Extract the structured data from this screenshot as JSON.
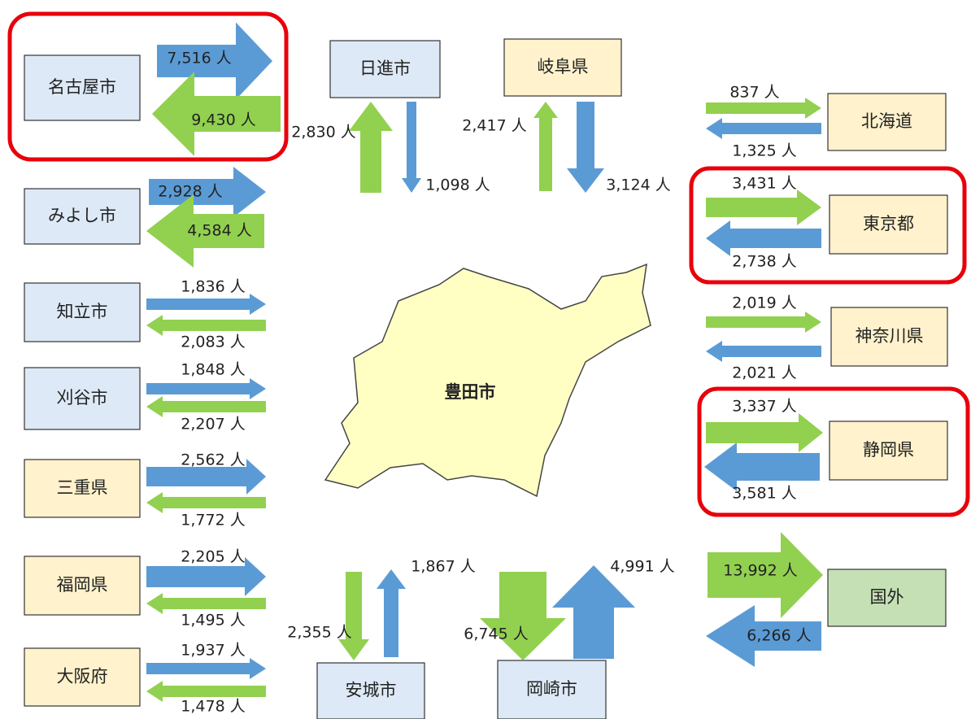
{
  "center": "豊田市",
  "nodes": [
    {
      "name": "名古屋市",
      "inflow": "7,516 人",
      "outflow": "9,430 人"
    },
    {
      "name": "みよし市",
      "inflow": "2,928 人",
      "outflow": "4,584 人"
    },
    {
      "name": "知立市",
      "inflow": "1,836 人",
      "outflow": "2,083 人"
    },
    {
      "name": "刈谷市",
      "inflow": "1,848 人",
      "outflow": "2,207 人"
    },
    {
      "name": "三重県",
      "inflow": "2,562 人",
      "outflow": "1,772 人"
    },
    {
      "name": "福岡県",
      "inflow": "2,205 人",
      "outflow": "1,495 人"
    },
    {
      "name": "大阪府",
      "inflow": "1,937 人",
      "outflow": "1,478 人"
    },
    {
      "name": "日進市",
      "inflow": "1,098 人",
      "outflow": "2,830 人"
    },
    {
      "name": "岐阜県",
      "inflow": "3,124 人",
      "outflow": "2,417 人"
    },
    {
      "name": "安城市",
      "inflow": "1,867 人",
      "outflow": "2,355 人"
    },
    {
      "name": "岡崎市",
      "inflow": "4,991 人",
      "outflow": "6,745 人"
    },
    {
      "name": "北海道",
      "inflow": "1,325 人",
      "outflow": "837 人"
    },
    {
      "name": "東京都",
      "inflow": "2,738 人",
      "outflow": "3,431 人"
    },
    {
      "name": "神奈川県",
      "inflow": "2,021 人",
      "outflow": "2,019 人"
    },
    {
      "name": "静岡県",
      "inflow": "3,581 人",
      "outflow": "3,337 人"
    },
    {
      "name": "国外",
      "inflow": "6,266 人",
      "outflow": "13,992 人"
    }
  ]
}
